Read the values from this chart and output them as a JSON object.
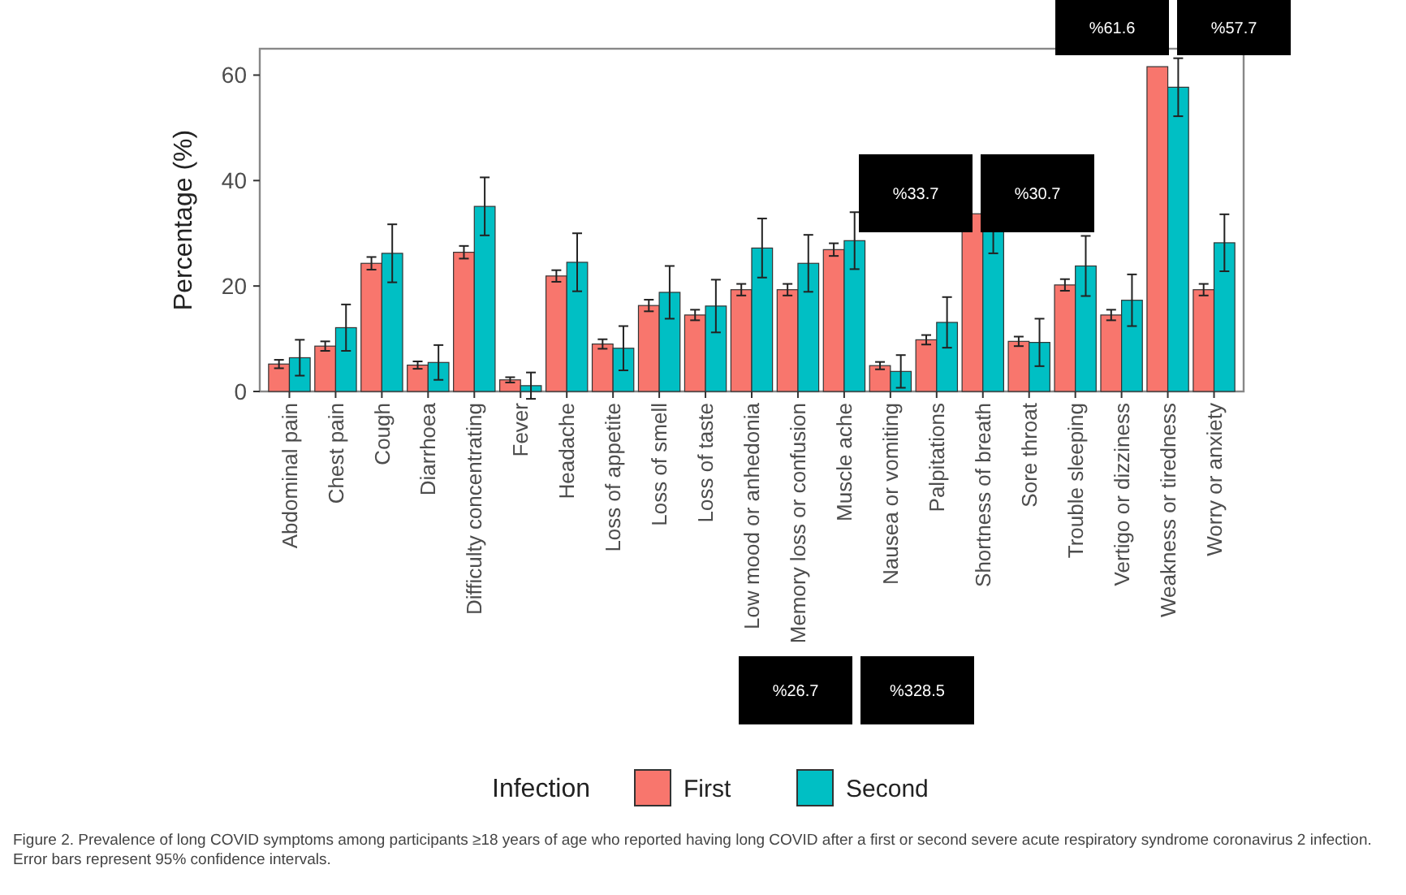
{
  "chart_data": {
    "type": "bar",
    "ylabel": "Percentage (%)",
    "legend_title": "Infection",
    "legend": "bottom",
    "categories": [
      "Abdominal pain",
      "Chest pain",
      "Cough",
      "Diarrhoea",
      "Difficulty concentrating",
      "Fever",
      "Headache",
      "Loss of appetite",
      "Loss of smell",
      "Loss of taste",
      "Low mood or anhedonia",
      "Memory loss or confusion",
      "Muscle ache",
      "Nausea or vomiting",
      "Palpitations",
      "Shortness of breath",
      "Sore throat",
      "Trouble sleeping",
      "Vertigo or dizziness",
      "Weakness or tiredness",
      "Worry or anxiety"
    ],
    "series": [
      {
        "name": "First",
        "color": "#f8766d",
        "values": [
          5.2,
          8.6,
          24.3,
          5.0,
          26.4,
          2.2,
          21.9,
          9.0,
          16.3,
          14.5,
          19.3,
          19.3,
          26.9,
          4.9,
          9.8,
          33.7,
          9.5,
          20.2,
          14.5,
          61.6,
          19.3
        ],
        "errors": [
          0.8,
          0.9,
          1.2,
          0.7,
          1.2,
          0.5,
          1.1,
          0.9,
          1.1,
          1.0,
          1.1,
          1.1,
          1.2,
          0.7,
          0.9,
          null,
          0.9,
          1.1,
          1.0,
          null,
          1.1
        ]
      },
      {
        "name": "Second",
        "color": "#00bfc4",
        "values": [
          6.4,
          12.1,
          26.2,
          5.5,
          35.1,
          1.1,
          24.5,
          8.2,
          18.8,
          16.2,
          27.2,
          24.3,
          28.6,
          3.8,
          13.1,
          30.7,
          9.3,
          23.8,
          17.3,
          57.7,
          28.2
        ],
        "errors": [
          3.4,
          4.4,
          5.5,
          3.3,
          5.5,
          2.5,
          5.5,
          4.2,
          5.0,
          5.0,
          5.6,
          5.4,
          5.4,
          3.1,
          4.8,
          4.5,
          4.5,
          5.7,
          4.9,
          5.5,
          5.4
        ]
      }
    ],
    "ylim": [
      0,
      65
    ],
    "yticks": [
      0,
      20,
      40,
      60
    ],
    "grid": false,
    "annotations": [
      "%61.6",
      "%57.7",
      "%33.7",
      "%30.7",
      "%26.7",
      "%328.5",
      "Figure 2. Prevalence of long COVID symptoms among participants ≥18 years of age who reported having long COVID after a first or second severe acute respiratory syndrome coronavirus 2 infection. Error bars represent 95% confidence intervals."
    ]
  }
}
